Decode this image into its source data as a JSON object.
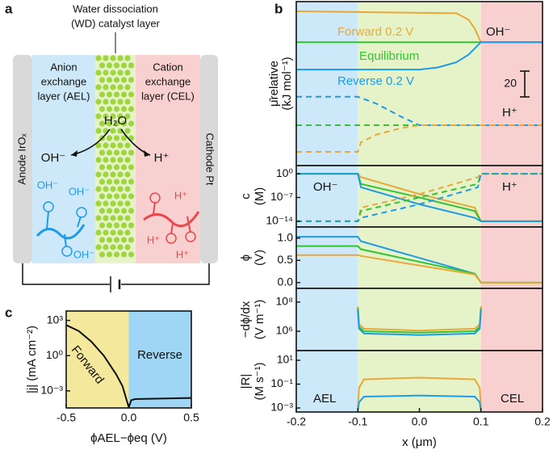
{
  "panel_labels": [
    "a",
    "b",
    "c"
  ],
  "diagram": {
    "catalyst_label": [
      "Water dissociation",
      "(WD) catalyst layer"
    ],
    "ael_label": [
      "Anion",
      "exchange",
      "layer (AEL)"
    ],
    "cel_label": [
      "Cation",
      "exchange",
      "layer (CEL)"
    ],
    "anode": "Anode IrOₓ",
    "cathode": "Cathode Pt",
    "water": "H₂O",
    "oh": "OH⁻",
    "h": "H⁺",
    "ael_ions": [
      "OH⁻",
      "OH⁻",
      "OH⁻"
    ],
    "cel_ions": [
      "H⁺",
      "H⁺",
      "H⁺"
    ]
  },
  "chart_data": [
    {
      "type": "line",
      "ylabel": [
        "μ̄relative",
        "(kJ mol⁻¹)"
      ],
      "ylim": [
        0,
        127
      ],
      "xlim": [
        -0.2,
        0.2
      ],
      "scale_bar": 20,
      "labels": [
        "OH⁻",
        "H⁺"
      ],
      "regions": [
        {
          "x0": -0.2,
          "x1": -0.1,
          "color": "#cde8f8"
        },
        {
          "x0": -0.1,
          "x1": 0.1,
          "color": "#e6f3c9"
        },
        {
          "x0": 0.1,
          "x1": 0.2,
          "color": "#f9d0d0"
        }
      ],
      "series": [
        {
          "name": "Forward 0.2 V",
          "color": "#e8a838",
          "x": [
            -0.2,
            0.06,
            0.08,
            0.09,
            0.1,
            0.2
          ],
          "values": [
            119.5,
            118,
            113,
            106,
            95.6,
            95.6
          ]
        },
        {
          "name": "Equilibrium",
          "color": "#33c433",
          "x": [
            -0.2,
            0.2
          ],
          "values": [
            95.6,
            95.6
          ]
        },
        {
          "name": "Reverse 0.2 V",
          "color": "#1e9be6",
          "x": [
            -0.2,
            0,
            0.03,
            0.06,
            0.08,
            0.1,
            0.2
          ],
          "values": [
            74.4,
            74.4,
            76,
            80,
            86,
            95.6,
            95.6
          ]
        },
        {
          "color": "#33c433",
          "dashed": true,
          "x": [
            -0.2,
            0.2
          ],
          "values": [
            31.3,
            31.3
          ]
        },
        {
          "color": "#1e9be6",
          "dashed": true,
          "x": [
            -0.2,
            -0.1,
            -0.07,
            -0.03,
            0,
            0.2
          ],
          "values": [
            53.3,
            53.3,
            48,
            38,
            31.3,
            31.3
          ]
        },
        {
          "color": "#e8a838",
          "dashed": true,
          "x": [
            -0.2,
            -0.1,
            -0.095,
            -0.07,
            -0.03,
            0,
            0.2
          ],
          "values": [
            10.6,
            10.6,
            18,
            24,
            29,
            31.3,
            31.3
          ]
        }
      ]
    },
    {
      "type": "line",
      "ylabel": [
        "c",
        "(M)"
      ],
      "log_y": true,
      "ylim": [
        2e-16,
        250
      ],
      "xlim": [
        -0.2,
        0.2
      ],
      "labels": [
        "OH⁻",
        "H⁺"
      ],
      "yticks": [
        {
          "value": 1,
          "label": "10⁰"
        },
        {
          "value": 1e-07,
          "label": "10⁻⁷"
        },
        {
          "value": 1e-14,
          "label": "10⁻¹⁴"
        }
      ],
      "regions": [
        {
          "x0": -0.2,
          "x1": -0.1,
          "color": "#cde8f8"
        },
        {
          "x0": -0.1,
          "x1": 0.1,
          "color": "#e6f3c9"
        },
        {
          "x0": 0.1,
          "x1": 0.2,
          "color": "#f9d0d0"
        }
      ],
      "series": [
        {
          "color": "#e8a838",
          "x": [
            -0.2,
            -0.1,
            -0.095,
            0,
            0.09,
            0.1,
            0.2
          ],
          "values": [
            1,
            1,
            0.1,
            1e-06,
            1e-10,
            1e-14,
            1e-14
          ]
        },
        {
          "color": "#33c433",
          "x": [
            -0.2,
            -0.1,
            -0.095,
            0,
            0.09,
            0.1,
            0.2
          ],
          "values": [
            1,
            1,
            0.001,
            1e-07,
            1e-11,
            1e-14,
            1e-14
          ]
        },
        {
          "color": "#1e9be6",
          "x": [
            -0.2,
            -0.1,
            -0.095,
            0,
            0.09,
            0.1,
            0.2
          ],
          "values": [
            1,
            1,
            0.0001,
            1e-09,
            1e-13,
            1e-14,
            1e-14
          ]
        },
        {
          "color": "#e8a838",
          "dashed": true,
          "x": [
            -0.2,
            -0.1,
            -0.095,
            0,
            0.095,
            0.1,
            0.2
          ],
          "values": [
            1e-14,
            1e-14,
            1e-10,
            1e-06,
            0.1,
            1,
            1
          ]
        },
        {
          "color": "#33c433",
          "dashed": true,
          "x": [
            -0.2,
            -0.1,
            -0.095,
            0,
            0.095,
            0.1,
            0.2
          ],
          "values": [
            1e-14,
            1e-14,
            1e-11,
            1e-07,
            0.001,
            1,
            1
          ]
        },
        {
          "color": "#1e9be6",
          "dashed": true,
          "x": [
            -0.2,
            -0.1,
            -0.095,
            0,
            0.095,
            0.1,
            0.2
          ],
          "values": [
            1e-14,
            1e-14,
            1e-13,
            1e-09,
            0.0001,
            1,
            1
          ]
        }
      ]
    },
    {
      "type": "line",
      "ylabel": [
        "ϕ",
        "(V)"
      ],
      "ylim": [
        -0.13,
        1.25
      ],
      "xlim": [
        -0.2,
        0.2
      ],
      "yticks": [
        {
          "value": 0,
          "label": "0.0"
        },
        {
          "value": 0.5,
          "label": "0.5"
        },
        {
          "value": 1,
          "label": "1.0"
        }
      ],
      "regions": [
        {
          "x0": -0.2,
          "x1": -0.1,
          "color": "#cde8f8"
        },
        {
          "x0": -0.1,
          "x1": 0.1,
          "color": "#e6f3c9"
        },
        {
          "x0": 0.1,
          "x1": 0.2,
          "color": "#f9d0d0"
        }
      ],
      "series": [
        {
          "color": "#1e9be6",
          "x": [
            -0.2,
            -0.1,
            -0.095,
            0.09,
            0.1,
            0.2
          ],
          "values": [
            1.03,
            1.03,
            0.93,
            0.2,
            0,
            0
          ]
        },
        {
          "color": "#33c433",
          "x": [
            -0.2,
            -0.1,
            -0.095,
            0.09,
            0.1,
            0.2
          ],
          "values": [
            0.82,
            0.82,
            0.75,
            0.2,
            0,
            0
          ]
        },
        {
          "color": "#e8a838",
          "x": [
            -0.2,
            -0.1,
            -0.095,
            0.09,
            0.1,
            0.2
          ],
          "values": [
            0.62,
            0.62,
            0.6,
            0.18,
            0,
            0
          ]
        }
      ]
    },
    {
      "type": "line",
      "ylabel": [
        "−dϕ/dx",
        "(V m⁻¹)"
      ],
      "log_y": true,
      "ylim": [
        47000,
        870000000
      ],
      "xlim": [
        -0.2,
        0.2
      ],
      "yticks": [
        {
          "value": 100000000,
          "label": "10⁸"
        },
        {
          "value": 1000000,
          "label": "10⁶"
        }
      ],
      "regions": [
        {
          "x0": -0.2,
          "x1": -0.1,
          "color": "#cde8f8"
        },
        {
          "x0": -0.1,
          "x1": 0.1,
          "color": "#e6f3c9"
        },
        {
          "x0": 0.1,
          "x1": 0.2,
          "color": "#f9d0d0"
        }
      ],
      "series": [
        {
          "color": "#e8a838",
          "x": [
            -0.1,
            -0.098,
            -0.09,
            0,
            0.09,
            0.098,
            0.1
          ],
          "values": [
            50000000,
            3000000,
            1500000,
            1100000,
            1500000,
            3000000,
            50000000
          ]
        },
        {
          "color": "#33c433",
          "x": [
            -0.1,
            -0.098,
            -0.09,
            0,
            0.09,
            0.098,
            0.1
          ],
          "values": [
            40000000,
            2000000,
            1000000,
            800000,
            1000000,
            2000000,
            40000000
          ]
        },
        {
          "color": "#1e9be6",
          "x": [
            -0.1,
            -0.098,
            -0.09,
            0,
            0.09,
            0.098,
            0.1
          ],
          "values": [
            30000000,
            1500000,
            700000,
            550000,
            700000,
            1500000,
            30000000
          ]
        }
      ]
    },
    {
      "type": "line",
      "ylabel": [
        "|R|",
        "(M s⁻¹)"
      ],
      "log_y": true,
      "ylim": [
        0.00046,
        65
      ],
      "xlim": [
        -0.2,
        0.2
      ],
      "xlabel": "x (μm)",
      "labels": [
        "AEL",
        "CEL"
      ],
      "xticks": [
        {
          "value": -0.2,
          "label": "-0.2"
        },
        {
          "value": -0.1,
          "label": "-0.1"
        },
        {
          "value": 0,
          "label": "0.0"
        },
        {
          "value": 0.1,
          "label": "0.1"
        },
        {
          "value": 0.2,
          "label": "0.2"
        }
      ],
      "yticks": [
        {
          "value": 10,
          "label": "10¹"
        },
        {
          "value": 0.1,
          "label": "10⁻¹"
        },
        {
          "value": 0.001,
          "label": "10⁻³"
        }
      ],
      "regions": [
        {
          "x0": -0.2,
          "x1": -0.1,
          "color": "#cde8f8"
        },
        {
          "x0": -0.1,
          "x1": 0.1,
          "color": "#e6f3c9"
        },
        {
          "x0": 0.1,
          "x1": 0.2,
          "color": "#f9d0d0"
        }
      ],
      "series": [
        {
          "color": "#e8a838",
          "x": [
            -0.1,
            -0.098,
            -0.09,
            0,
            0.09,
            0.098,
            0.1
          ],
          "values": [
            0.001,
            0.05,
            0.25,
            0.35,
            0.25,
            0.05,
            0.001
          ]
        },
        {
          "color": "#1e9be6",
          "x": [
            -0.1,
            -0.098,
            -0.09,
            0,
            0.09,
            0.098,
            0.1
          ],
          "values": [
            0.0006,
            0.003,
            0.009,
            0.011,
            0.009,
            0.003,
            0.0006
          ]
        }
      ]
    },
    {
      "type": "line",
      "ylabel": [
        "|j| (mA cm⁻²)"
      ],
      "xlabel": "ϕAEL−ϕeq (V)",
      "log_y": true,
      "ylim": [
        3.5e-05,
        6300
      ],
      "xlim": [
        -0.5,
        0.5
      ],
      "labels": [
        "Forward",
        "Reverse"
      ],
      "xticks": [
        {
          "value": -0.5,
          "label": "-0.5"
        },
        {
          "value": 0,
          "label": "0.0"
        },
        {
          "value": 0.5,
          "label": "0.5"
        }
      ],
      "yticks": [
        {
          "value": 1000,
          "label": "10³"
        },
        {
          "value": 1,
          "label": "10⁰"
        },
        {
          "value": 0.001,
          "label": "10⁻³"
        }
      ],
      "regions": [
        {
          "x0": -0.5,
          "x1": 0,
          "color": "#f3e89c"
        },
        {
          "x0": 0,
          "x1": 0.5,
          "color": "#9fd5f5"
        }
      ],
      "series": [
        {
          "color": "#111111",
          "x": [
            -0.5,
            -0.4,
            -0.3,
            -0.2,
            -0.1,
            -0.05,
            0,
            0.02,
            0.05,
            0.5
          ],
          "values": [
            400,
            126,
            16,
            1,
            0.025,
            0.0025,
            4e-05,
            0.00016,
            0.0002,
            0.00025
          ]
        }
      ]
    }
  ]
}
